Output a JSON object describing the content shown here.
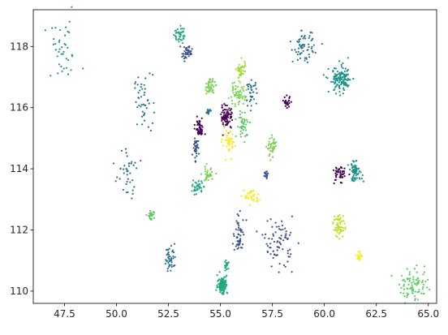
{
  "chart_data": {
    "type": "scatter",
    "title": "",
    "xlabel": "",
    "ylabel": "",
    "xlim": [
      46.0,
      65.4
    ],
    "ylim": [
      109.6,
      119.2
    ],
    "grid": false,
    "legend": "none",
    "x_ticks": [
      47.5,
      50.0,
      52.5,
      55.0,
      57.5,
      60.0,
      62.5,
      65.0
    ],
    "x_tick_labels": [
      "47.5",
      "50.0",
      "52.5",
      "55.0",
      "57.5",
      "60.0",
      "62.5",
      "65.0"
    ],
    "y_ticks": [
      110,
      112,
      114,
      116,
      118
    ],
    "y_tick_labels": [
      "110",
      "112",
      "114",
      "116",
      "118"
    ],
    "colormap": "viridis",
    "clusters": [
      {
        "x": 47.4,
        "y": 117.8,
        "sx": 0.45,
        "sy": 0.5,
        "n": 40,
        "color": "#21918c"
      },
      {
        "x": 51.3,
        "y": 116.2,
        "sx": 0.22,
        "sy": 0.45,
        "n": 45,
        "color": "#2c728e"
      },
      {
        "x": 50.5,
        "y": 113.8,
        "sx": 0.25,
        "sy": 0.4,
        "n": 40,
        "color": "#2c728e"
      },
      {
        "x": 51.7,
        "y": 112.5,
        "sx": 0.08,
        "sy": 0.08,
        "n": 30,
        "color": "#5ec962"
      },
      {
        "x": 52.6,
        "y": 111.1,
        "sx": 0.14,
        "sy": 0.22,
        "n": 45,
        "color": "#2c728e"
      },
      {
        "x": 53.0,
        "y": 118.4,
        "sx": 0.12,
        "sy": 0.15,
        "n": 40,
        "color": "#22a884"
      },
      {
        "x": 53.4,
        "y": 117.8,
        "sx": 0.12,
        "sy": 0.12,
        "n": 40,
        "color": "#3b528b"
      },
      {
        "x": 54.5,
        "y": 116.7,
        "sx": 0.12,
        "sy": 0.12,
        "n": 45,
        "color": "#7ad151"
      },
      {
        "x": 54.0,
        "y": 115.3,
        "sx": 0.1,
        "sy": 0.15,
        "n": 55,
        "color": "#440154"
      },
      {
        "x": 53.8,
        "y": 114.7,
        "sx": 0.06,
        "sy": 0.18,
        "n": 35,
        "color": "#3b528b"
      },
      {
        "x": 54.4,
        "y": 115.85,
        "sx": 0.05,
        "sy": 0.05,
        "n": 20,
        "color": "#2c728e"
      },
      {
        "x": 54.4,
        "y": 113.8,
        "sx": 0.15,
        "sy": 0.12,
        "n": 40,
        "color": "#7ad151"
      },
      {
        "x": 53.9,
        "y": 113.4,
        "sx": 0.12,
        "sy": 0.1,
        "n": 40,
        "color": "#22a884"
      },
      {
        "x": 55.3,
        "y": 115.7,
        "sx": 0.15,
        "sy": 0.2,
        "n": 80,
        "color": "#440154"
      },
      {
        "x": 55.4,
        "y": 114.8,
        "sx": 0.15,
        "sy": 0.2,
        "n": 45,
        "color": "#fde725"
      },
      {
        "x": 55.8,
        "y": 116.4,
        "sx": 0.22,
        "sy": 0.15,
        "n": 55,
        "color": "#7ad151"
      },
      {
        "x": 56.0,
        "y": 117.2,
        "sx": 0.12,
        "sy": 0.2,
        "n": 40,
        "color": "#a0da39"
      },
      {
        "x": 56.5,
        "y": 116.5,
        "sx": 0.12,
        "sy": 0.18,
        "n": 35,
        "color": "#2c728e"
      },
      {
        "x": 56.1,
        "y": 115.45,
        "sx": 0.15,
        "sy": 0.22,
        "n": 45,
        "color": "#5ec962"
      },
      {
        "x": 55.1,
        "y": 110.2,
        "sx": 0.12,
        "sy": 0.15,
        "n": 110,
        "color": "#22a884"
      },
      {
        "x": 55.3,
        "y": 110.85,
        "sx": 0.05,
        "sy": 0.1,
        "n": 20,
        "color": "#22a884"
      },
      {
        "x": 55.9,
        "y": 111.8,
        "sx": 0.14,
        "sy": 0.3,
        "n": 55,
        "color": "#3b528b"
      },
      {
        "x": 56.5,
        "y": 113.1,
        "sx": 0.18,
        "sy": 0.12,
        "n": 35,
        "color": "#fde725"
      },
      {
        "x": 57.2,
        "y": 113.8,
        "sx": 0.06,
        "sy": 0.08,
        "n": 20,
        "color": "#3b528b"
      },
      {
        "x": 57.5,
        "y": 114.7,
        "sx": 0.12,
        "sy": 0.15,
        "n": 40,
        "color": "#7ad151"
      },
      {
        "x": 57.8,
        "y": 111.6,
        "sx": 0.35,
        "sy": 0.4,
        "n": 80,
        "color": "#3b528b"
      },
      {
        "x": 58.2,
        "y": 116.15,
        "sx": 0.1,
        "sy": 0.1,
        "n": 25,
        "color": "#440154"
      },
      {
        "x": 59.0,
        "y": 118.0,
        "sx": 0.25,
        "sy": 0.25,
        "n": 65,
        "color": "#2c728e"
      },
      {
        "x": 60.8,
        "y": 116.9,
        "sx": 0.28,
        "sy": 0.22,
        "n": 130,
        "color": "#21918c"
      },
      {
        "x": 60.7,
        "y": 113.8,
        "sx": 0.14,
        "sy": 0.15,
        "n": 45,
        "color": "#440154"
      },
      {
        "x": 61.5,
        "y": 113.9,
        "sx": 0.16,
        "sy": 0.15,
        "n": 70,
        "color": "#21918c"
      },
      {
        "x": 60.7,
        "y": 112.15,
        "sx": 0.14,
        "sy": 0.2,
        "n": 55,
        "color": "#bddf26"
      },
      {
        "x": 61.7,
        "y": 111.15,
        "sx": 0.06,
        "sy": 0.08,
        "n": 25,
        "color": "#fde725"
      },
      {
        "x": 64.3,
        "y": 110.2,
        "sx": 0.35,
        "sy": 0.25,
        "n": 85,
        "color": "#5ec962"
      }
    ]
  }
}
